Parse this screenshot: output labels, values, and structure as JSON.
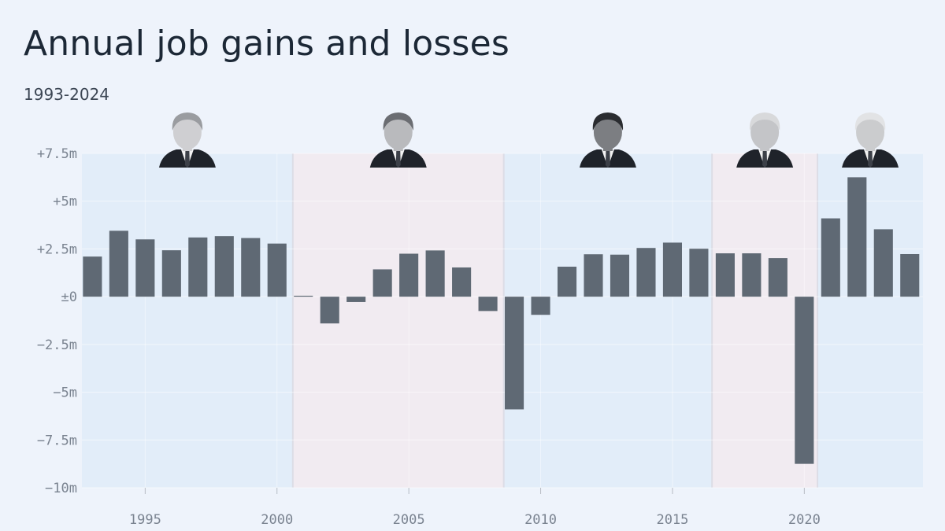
{
  "header": {
    "title": "Annual job gains and losses",
    "subtitle": "1993-2024"
  },
  "colors": {
    "background": "#eef3fb",
    "bar": "#5f6974",
    "democrat_band": "#e2edf9",
    "republican_band": "#f1ebf1"
  },
  "chart_data": {
    "type": "bar",
    "title": "Annual job gains and losses",
    "subtitle": "1993-2024",
    "xlabel": "",
    "ylabel": "",
    "unit": "millions of jobs",
    "xlim": [
      1992.6,
      2024.5
    ],
    "ylim": [
      -10,
      7.5
    ],
    "x_ticks": [
      1995,
      2000,
      2005,
      2010,
      2015,
      2020
    ],
    "x_tick_labels": [
      "1995",
      "2000",
      "2005",
      "2010",
      "2015",
      "2020"
    ],
    "y_ticks": [
      7.5,
      5,
      2.5,
      0,
      -2.5,
      -5,
      -7.5,
      -10
    ],
    "y_tick_labels": [
      "+7.5m",
      "+5m",
      "+2.5m",
      "±0",
      "−2.5m",
      "−5m",
      "−7.5m",
      "−10m"
    ],
    "grid": true,
    "categories": [
      1993,
      1994,
      1995,
      1996,
      1997,
      1998,
      1999,
      2000,
      2001,
      2002,
      2003,
      2004,
      2005,
      2006,
      2007,
      2008,
      2009,
      2010,
      2011,
      2012,
      2013,
      2014,
      2015,
      2016,
      2017,
      2018,
      2019,
      2020,
      2021,
      2022,
      2023,
      2024
    ],
    "values": [
      2.1,
      3.45,
      3.0,
      2.43,
      3.1,
      3.17,
      3.07,
      2.78,
      0.05,
      -1.4,
      -0.28,
      1.43,
      2.25,
      2.42,
      1.53,
      -0.75,
      -5.9,
      -0.95,
      1.57,
      2.22,
      2.2,
      2.55,
      2.83,
      2.51,
      2.27,
      2.27,
      2.02,
      -8.75,
      4.1,
      6.25,
      3.53,
      2.23
    ],
    "bands": [
      {
        "party": "D",
        "start": 1992.6,
        "end": 2000.6,
        "portrait": "clinton-portrait"
      },
      {
        "party": "R",
        "start": 2000.6,
        "end": 2008.6,
        "portrait": "bush-portrait"
      },
      {
        "party": "D",
        "start": 2008.6,
        "end": 2016.5,
        "portrait": "obama-portrait"
      },
      {
        "party": "R",
        "start": 2016.5,
        "end": 2020.5,
        "portrait": "trump-portrait"
      },
      {
        "party": "D",
        "start": 2020.5,
        "end": 2024.5,
        "portrait": "biden-portrait"
      }
    ],
    "portrait_styles": [
      {
        "hair": "#9a9ca0",
        "skin": "#cfcfd2"
      },
      {
        "hair": "#6b6d72",
        "skin": "#b9babd"
      },
      {
        "hair": "#2a2c30",
        "skin": "#7c7e82"
      },
      {
        "hair": "#d8d9db",
        "skin": "#c4c5c8"
      },
      {
        "hair": "#e2e3e5",
        "skin": "#cbccce"
      }
    ]
  }
}
